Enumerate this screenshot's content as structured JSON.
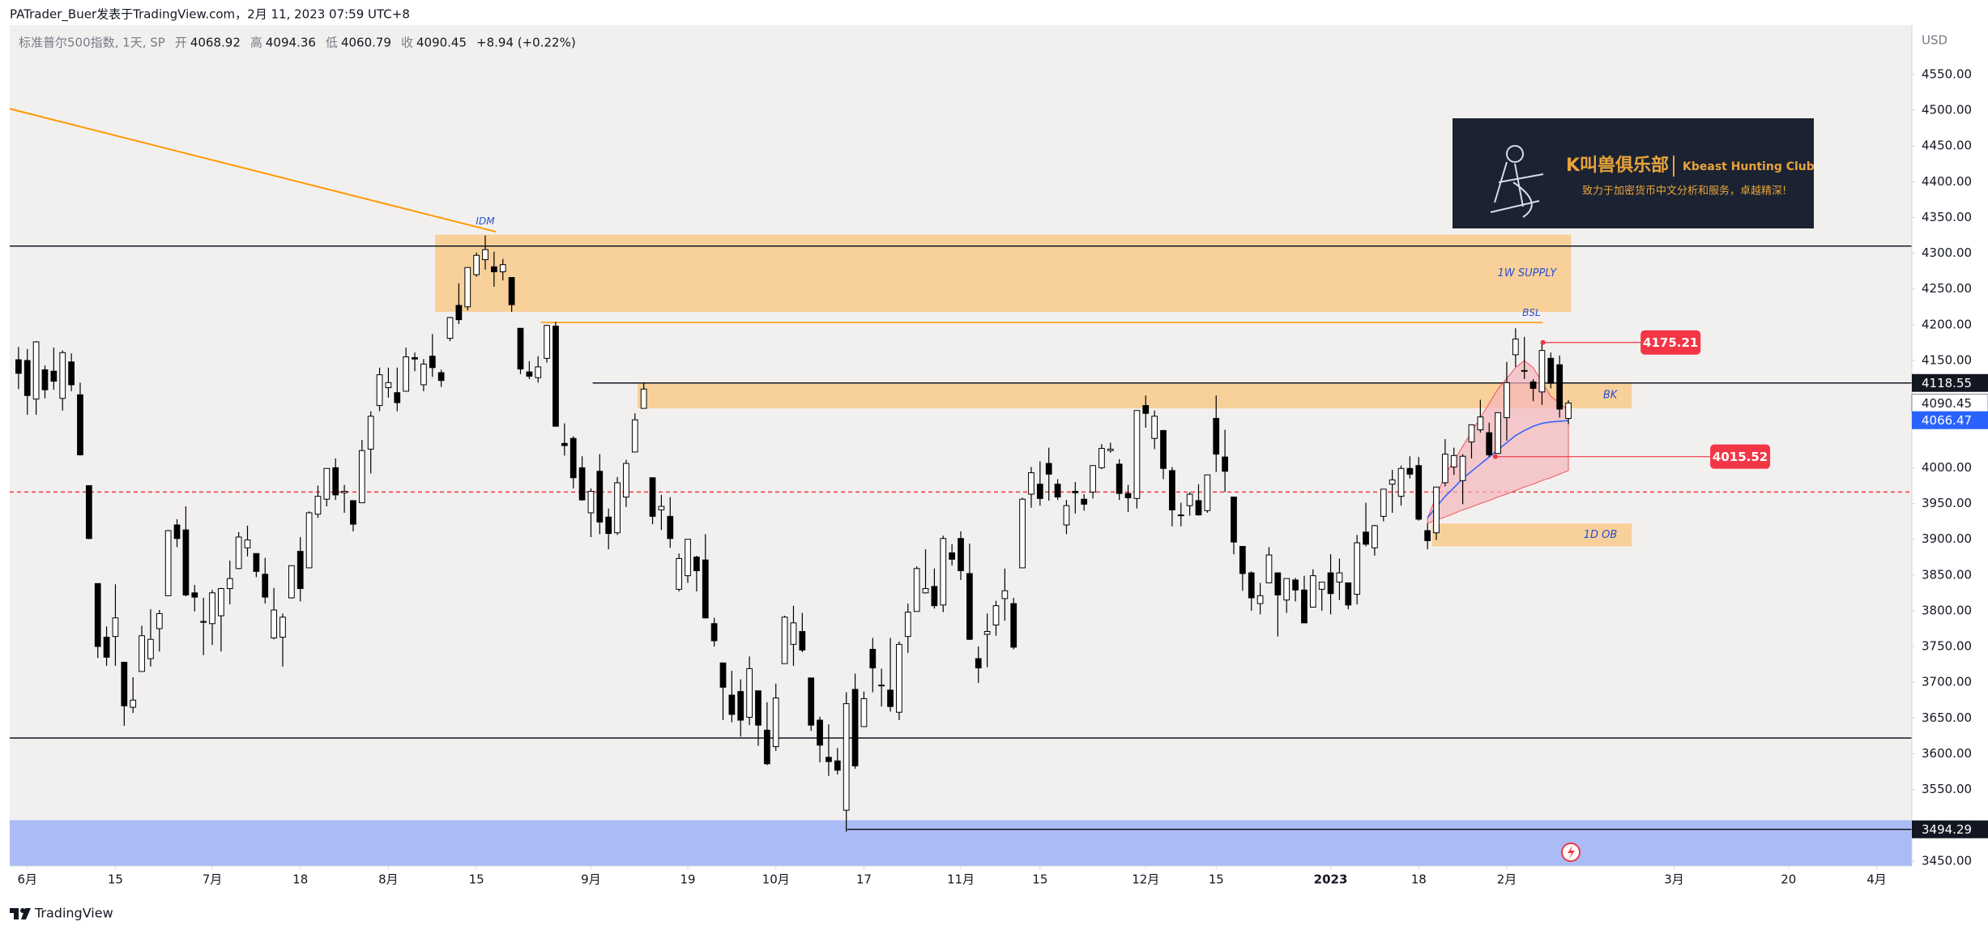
{
  "header": "PATrader_Buer发表于TradingView.com，2月 11, 2023 07:59 UTC+8",
  "footer": "TradingView",
  "banner": {
    "title": "K叫兽俱乐部",
    "subtitle": "Kbeast Hunting Club",
    "tagline": "致力于加密货币中文分析和服务，卓越精深!"
  },
  "chart_data": {
    "type": "candlestick",
    "currency": "USD",
    "legend": {
      "symbol": "标准普尔500指数, 1天, SP",
      "labels": [
        "开",
        "高",
        "低",
        "收"
      ],
      "change": "+8.94 (+0.22%)"
    },
    "xlim": [
      -1,
      215
    ],
    "ylim": [
      3443,
      4619
    ],
    "grid": false,
    "up_color": "#ffffff",
    "down_color": "#000000",
    "wick_color": "#000000",
    "xticks": [
      {
        "value": 1,
        "label": "6月"
      },
      {
        "value": 11,
        "label": "15"
      },
      {
        "value": 22,
        "label": "7月"
      },
      {
        "value": 32,
        "label": "18"
      },
      {
        "value": 42,
        "label": "8月"
      },
      {
        "value": 52,
        "label": "15"
      },
      {
        "value": 65,
        "label": "9月"
      },
      {
        "value": 76,
        "label": "19"
      },
      {
        "value": 86,
        "label": "10月"
      },
      {
        "value": 96,
        "label": "17"
      },
      {
        "value": 107,
        "label": "11月"
      },
      {
        "value": 116,
        "label": "15"
      },
      {
        "value": 128,
        "label": "12月"
      },
      {
        "value": 136,
        "label": "15"
      },
      {
        "value": 149,
        "label": "2023"
      },
      {
        "value": 159,
        "label": "18"
      },
      {
        "value": 169,
        "label": "2月"
      },
      {
        "value": 188,
        "label": "3月"
      },
      {
        "value": 201,
        "label": "20"
      },
      {
        "value": 211,
        "label": "4月"
      }
    ],
    "yticks": [
      {
        "value": 3450,
        "label": "3450.00"
      },
      {
        "value": 3550,
        "label": "3550.00"
      },
      {
        "value": 3600,
        "label": "3600.00"
      },
      {
        "value": 3650,
        "label": "3650.00"
      },
      {
        "value": 3700,
        "label": "3700.00"
      },
      {
        "value": 3750,
        "label": "3750.00"
      },
      {
        "value": 3800,
        "label": "3800.00"
      },
      {
        "value": 3850,
        "label": "3850.00"
      },
      {
        "value": 3900,
        "label": "3900.00"
      },
      {
        "value": 3950,
        "label": "3950.00"
      },
      {
        "value": 4000,
        "label": "4000.00"
      },
      {
        "value": 4150,
        "label": "4150.00"
      },
      {
        "value": 4200,
        "label": "4200.00"
      },
      {
        "value": 4250,
        "label": "4250.00"
      },
      {
        "value": 4300,
        "label": "4300.00"
      },
      {
        "value": 4350,
        "label": "4350.00"
      },
      {
        "value": 4400,
        "label": "4400.00"
      },
      {
        "value": 4450,
        "label": "4450.00"
      },
      {
        "value": 4500,
        "label": "4500.00"
      },
      {
        "value": 4550,
        "label": "4550.00"
      }
    ],
    "ohlc": [
      [
        4151,
        4169,
        4110,
        4132
      ],
      [
        4150,
        4166,
        4074,
        4101
      ],
      [
        4096,
        4177,
        4074,
        4176
      ],
      [
        4137,
        4143,
        4097,
        4109
      ],
      [
        4135,
        4168,
        4109,
        4121
      ],
      [
        4097,
        4164,
        4080,
        4161
      ],
      [
        4148,
        4160,
        4107,
        4116
      ],
      [
        4102,
        4119,
        4017,
        4018
      ],
      [
        3975,
        3975,
        3900,
        3901
      ],
      [
        3838,
        3838,
        3734,
        3750
      ],
      [
        3763,
        3778,
        3723,
        3735
      ],
      [
        3764,
        3837,
        3723,
        3790
      ],
      [
        3728,
        3728,
        3639,
        3667
      ],
      [
        3665,
        3707,
        3657,
        3675
      ],
      [
        3715,
        3779,
        3715,
        3765
      ],
      [
        3733,
        3802,
        3722,
        3760
      ],
      [
        3775,
        3801,
        3743,
        3796
      ],
      [
        3821,
        3913,
        3821,
        3912
      ],
      [
        3920,
        3928,
        3889,
        3901
      ],
      [
        3913,
        3946,
        3820,
        3822
      ],
      [
        3825,
        3836,
        3799,
        3819
      ],
      [
        3785,
        3818,
        3738,
        3785
      ],
      [
        3782,
        3829,
        3752,
        3825
      ],
      [
        3793,
        3832,
        3743,
        3831
      ],
      [
        3831,
        3870,
        3809,
        3845
      ],
      [
        3859,
        3910,
        3858,
        3903
      ],
      [
        3888,
        3919,
        3876,
        3899
      ],
      [
        3880,
        3880,
        3847,
        3855
      ],
      [
        3851,
        3874,
        3810,
        3819
      ],
      [
        3762,
        3832,
        3760,
        3801
      ],
      [
        3763,
        3796,
        3722,
        3791
      ],
      [
        3818,
        3863,
        3817,
        3863
      ],
      [
        3883,
        3903,
        3813,
        3831
      ],
      [
        3860,
        3939,
        3860,
        3937
      ],
      [
        3935,
        3975,
        3930,
        3960
      ],
      [
        3956,
        3999,
        3946,
        3999
      ],
      [
        4000,
        4013,
        3955,
        3962
      ],
      [
        3965,
        3976,
        3937,
        3967
      ],
      [
        3954,
        3954,
        3911,
        3921
      ],
      [
        3951,
        4039,
        3951,
        4024
      ],
      [
        4026,
        4079,
        3992,
        4072
      ],
      [
        4087,
        4140,
        4079,
        4130
      ],
      [
        4112,
        4140,
        4098,
        4119
      ],
      [
        4105,
        4140,
        4079,
        4091
      ],
      [
        4107,
        4168,
        4107,
        4155
      ],
      [
        4154,
        4161,
        4135,
        4152
      ],
      [
        4116,
        4152,
        4107,
        4145
      ],
      [
        4156,
        4187,
        4127,
        4140
      ],
      [
        4133,
        4137,
        4113,
        4122
      ],
      [
        4181,
        4211,
        4177,
        4210
      ],
      [
        4227,
        4258,
        4201,
        4207
      ],
      [
        4225,
        4280,
        4220,
        4280
      ],
      [
        4270,
        4301,
        4267,
        4297
      ],
      [
        4291,
        4325,
        4277,
        4305
      ],
      [
        4281,
        4302,
        4253,
        4274
      ],
      [
        4274,
        4292,
        4262,
        4284
      ],
      [
        4266,
        4266,
        4218,
        4228
      ],
      [
        4195,
        4195,
        4131,
        4138
      ],
      [
        4134,
        4149,
        4124,
        4128
      ],
      [
        4126,
        4156,
        4119,
        4141
      ],
      [
        4153,
        4200,
        4147,
        4199
      ],
      [
        4198,
        4204,
        4058,
        4058
      ],
      [
        4034,
        4062,
        4017,
        4031
      ],
      [
        4041,
        4044,
        3971,
        3986
      ],
      [
        4000,
        4016,
        3954,
        3955
      ],
      [
        3937,
        3971,
        3903,
        3967
      ],
      [
        3995,
        4019,
        3907,
        3924
      ],
      [
        3931,
        3943,
        3886,
        3908
      ],
      [
        3909,
        3987,
        3906,
        3979
      ],
      [
        3959,
        4011,
        3945,
        4006
      ],
      [
        4022,
        4076,
        4022,
        4067
      ],
      [
        4083,
        4119,
        4083,
        4110
      ],
      [
        3986,
        3986,
        3921,
        3932
      ],
      [
        3941,
        3962,
        3913,
        3946
      ],
      [
        3932,
        3959,
        3888,
        3901
      ],
      [
        3830,
        3880,
        3827,
        3873
      ],
      [
        3849,
        3900,
        3839,
        3900
      ],
      [
        3875,
        3877,
        3827,
        3856
      ],
      [
        3871,
        3907,
        3789,
        3790
      ],
      [
        3782,
        3790,
        3750,
        3758
      ],
      [
        3727,
        3727,
        3647,
        3693
      ],
      [
        3682,
        3716,
        3644,
        3655
      ],
      [
        3687,
        3704,
        3624,
        3647
      ],
      [
        3651,
        3736,
        3640,
        3719
      ],
      [
        3688,
        3688,
        3611,
        3640
      ],
      [
        3633,
        3672,
        3584,
        3586
      ],
      [
        3610,
        3698,
        3604,
        3678
      ],
      [
        3726,
        3793,
        3726,
        3791
      ],
      [
        3753,
        3807,
        3723,
        3783
      ],
      [
        3771,
        3797,
        3742,
        3745
      ],
      [
        3706,
        3706,
        3632,
        3640
      ],
      [
        3647,
        3652,
        3588,
        3612
      ],
      [
        3595,
        3641,
        3569,
        3589
      ],
      [
        3590,
        3608,
        3571,
        3577
      ],
      [
        3521,
        3686,
        3491,
        3670
      ],
      [
        3690,
        3712,
        3579,
        3583
      ],
      [
        3638,
        3687,
        3638,
        3677
      ],
      [
        3746,
        3762,
        3686,
        3720
      ],
      [
        3696,
        3719,
        3666,
        3695
      ],
      [
        3689,
        3762,
        3659,
        3666
      ],
      [
        3658,
        3757,
        3647,
        3753
      ],
      [
        3764,
        3810,
        3741,
        3798
      ],
      [
        3799,
        3862,
        3799,
        3859
      ],
      [
        3825,
        3886,
        3824,
        3831
      ],
      [
        3834,
        3859,
        3803,
        3807
      ],
      [
        3808,
        3905,
        3798,
        3901
      ],
      [
        3881,
        3893,
        3863,
        3872
      ],
      [
        3901,
        3911,
        3843,
        3856
      ],
      [
        3852,
        3894,
        3759,
        3760
      ],
      [
        3733,
        3750,
        3699,
        3720
      ],
      [
        3767,
        3796,
        3721,
        3771
      ],
      [
        3780,
        3814,
        3765,
        3807
      ],
      [
        3817,
        3859,
        3786,
        3828
      ],
      [
        3810,
        3818,
        3746,
        3749
      ],
      [
        3860,
        3958,
        3860,
        3956
      ],
      [
        3963,
        4001,
        3944,
        3993
      ],
      [
        3977,
        4009,
        3947,
        3957
      ],
      [
        4006,
        4028,
        3954,
        3991
      ],
      [
        3977,
        3984,
        3955,
        3959
      ],
      [
        3920,
        3955,
        3907,
        3947
      ],
      [
        3967,
        3980,
        3936,
        3965
      ],
      [
        3956,
        3963,
        3940,
        3949
      ],
      [
        3966,
        4003,
        3957,
        4003
      ],
      [
        4000,
        4033,
        3998,
        4027
      ],
      [
        4024,
        4035,
        4021,
        4026
      ],
      [
        4005,
        4012,
        3955,
        3964
      ],
      [
        3964,
        3976,
        3938,
        3958
      ],
      [
        3957,
        4080,
        3943,
        4080
      ],
      [
        4087,
        4101,
        4056,
        4076
      ],
      [
        4041,
        4080,
        4026,
        4072
      ],
      [
        4052,
        4053,
        3984,
        3999
      ],
      [
        3996,
        4001,
        3918,
        3941
      ],
      [
        3934,
        3951,
        3918,
        3933
      ],
      [
        3947,
        3966,
        3933,
        3963
      ],
      [
        3954,
        3977,
        3933,
        3934
      ],
      [
        3940,
        3990,
        3937,
        3990
      ],
      [
        4069,
        4101,
        3994,
        4019
      ],
      [
        4015,
        4053,
        3966,
        3995
      ],
      [
        3959,
        3959,
        3879,
        3896
      ],
      [
        3890,
        3890,
        3828,
        3852
      ],
      [
        3853,
        3855,
        3800,
        3818
      ],
      [
        3810,
        3839,
        3795,
        3821
      ],
      [
        3839,
        3889,
        3839,
        3878
      ],
      [
        3853,
        3853,
        3764,
        3822
      ],
      [
        3815,
        3845,
        3797,
        3845
      ],
      [
        3843,
        3846,
        3813,
        3829
      ],
      [
        3829,
        3849,
        3783,
        3783
      ],
      [
        3805,
        3858,
        3805,
        3849
      ],
      [
        3830,
        3840,
        3800,
        3840
      ],
      [
        3853,
        3879,
        3795,
        3824
      ],
      [
        3840,
        3873,
        3815,
        3853
      ],
      [
        3839,
        3839,
        3802,
        3808
      ],
      [
        3823,
        3906,
        3809,
        3895
      ],
      [
        3910,
        3951,
        3890,
        3893
      ],
      [
        3888,
        3920,
        3877,
        3919
      ],
      [
        3932,
        3970,
        3925,
        3970
      ],
      [
        3977,
        3997,
        3937,
        3983
      ],
      [
        3960,
        4003,
        3947,
        3999
      ],
      [
        3999,
        4016,
        3985,
        3991
      ],
      [
        4003,
        4015,
        3926,
        3928
      ],
      [
        3912,
        3922,
        3886,
        3898
      ],
      [
        3909,
        3973,
        3899,
        3973
      ],
      [
        3979,
        4040,
        3974,
        4019
      ],
      [
        4001,
        4028,
        3990,
        4017
      ],
      [
        3982,
        4019,
        3949,
        4016
      ],
      [
        4036,
        4060,
        4013,
        4060
      ],
      [
        4053,
        4095,
        4049,
        4071
      ],
      [
        4049,
        4063,
        4015,
        4018
      ],
      [
        4020,
        4077,
        4020,
        4077
      ],
      [
        4070,
        4148,
        4038,
        4119
      ],
      [
        4158,
        4195,
        4141,
        4180
      ],
      [
        4136,
        4183,
        4124,
        4136
      ],
      [
        4120,
        4124,
        4093,
        4111
      ],
      [
        4106,
        4176,
        4088,
        4164
      ],
      [
        4153,
        4161,
        4111,
        4118
      ],
      [
        4144,
        4157,
        4070,
        4082
      ],
      [
        4068.92,
        4094.36,
        4060.79,
        4090.45
      ]
    ],
    "zones": [
      {
        "x": [
          -1,
          215
        ],
        "y": [
          3443,
          3507
        ],
        "color": "#a3b5f5"
      },
      {
        "label": "1W SUPPLY",
        "x": [
          47.3,
          176.3
        ],
        "y": [
          4218,
          4326
        ],
        "color": "#f8cc8f"
      },
      {
        "label": "BK",
        "x": [
          70.3,
          183.2
        ],
        "y": [
          4083,
          4119
        ],
        "color": "#f8cc8f"
      },
      {
        "label": "1D OB",
        "x": [
          160.5,
          183.2
        ],
        "y": [
          3890,
          3922
        ],
        "color": "#f8cc8f"
      }
    ],
    "levels": [
      {
        "y": 4310,
        "color": "#131722"
      },
      {
        "y": 3622,
        "color": "#131722"
      },
      {
        "y": 3966,
        "color": "#f23645",
        "dash": true
      },
      {
        "y": 4203,
        "x": [
          59.3,
          173.1
        ],
        "color": "#ff9800"
      },
      {
        "y": 4118.55,
        "x": [
          65.2,
          215
        ],
        "color": "#131722"
      },
      {
        "y": 3494.29,
        "x": [
          94.1,
          215
        ],
        "color": "#131722"
      }
    ],
    "trendlines": [
      {
        "x": [
          -1,
          54.2
        ],
        "y": [
          4502,
          4330
        ],
        "color": "#ff9800"
      }
    ],
    "fan": {
      "x": [
        160,
        161,
        162,
        163,
        164,
        165,
        166,
        167,
        168,
        169,
        170,
        171,
        172,
        173,
        174,
        175,
        176
      ],
      "upper": [
        3930,
        3960,
        3990,
        4010,
        4030,
        4050,
        4070,
        4090,
        4110,
        4125,
        4140,
        4150,
        4140,
        4120,
        4100,
        4090,
        4080
      ],
      "lower": [
        3922,
        3927,
        3931,
        3936,
        3941,
        3945,
        3950,
        3954,
        3959,
        3963,
        3968,
        3973,
        3977,
        3982,
        3986,
        3991,
        3996
      ],
      "ma": [
        3930,
        3945,
        3960,
        3972,
        3985,
        3995,
        4005,
        4015,
        4025,
        4035,
        4045,
        4052,
        4058,
        4062,
        4064,
        4065,
        4066
      ],
      "fill": "#f5b5ba",
      "line_color": "#2962ff"
    },
    "notes": [
      {
        "text": "IDM",
        "x": 53,
        "y": 4344
      },
      {
        "text": "BSL",
        "x": 171.8,
        "y": 4216
      }
    ],
    "callouts": [
      {
        "value": 4175.21,
        "x": [
          173.1,
          184.2
        ],
        "color": "#f23645"
      },
      {
        "value": 4015.52,
        "x": [
          167.7,
          192.1
        ],
        "color": "#f23645"
      }
    ],
    "price_tags": [
      {
        "value": 4118.55,
        "color": "#131722",
        "text_color": "#ffffff"
      },
      {
        "value": 4090.45,
        "color": "#ffffff",
        "text_color": "#131722"
      },
      {
        "value": 4066.47,
        "color": "#2962ff",
        "text_color": "#ffffff"
      },
      {
        "value": 3494.29,
        "color": "#131722",
        "text_color": "#ffffff"
      }
    ]
  }
}
